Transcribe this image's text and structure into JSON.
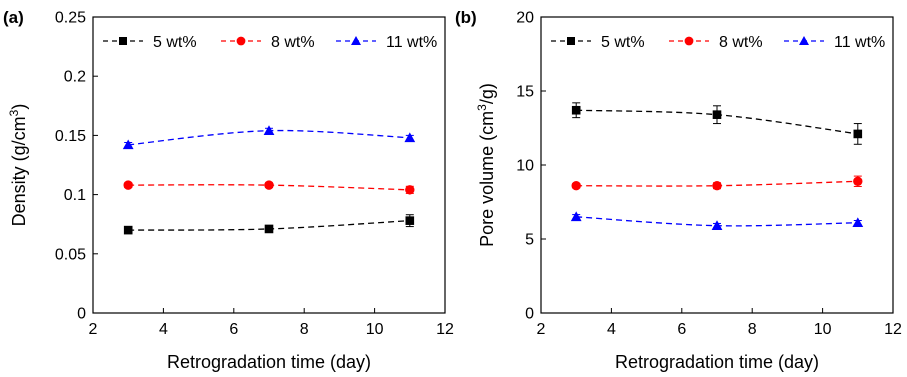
{
  "chart_data": [
    {
      "panel_label": "(a)",
      "type": "line",
      "xlabel": "Retrogradation time (day)",
      "ylabel_main": "Density (g/cm",
      "ylabel_sup": "3",
      "ylabel_tail": ")",
      "xlim": [
        2,
        12
      ],
      "ylim": [
        0,
        0.25
      ],
      "xticks": [
        2,
        4,
        6,
        8,
        10,
        12
      ],
      "yticks": [
        0,
        0.05,
        0.1,
        0.15,
        0.2,
        0.25
      ],
      "ytick_labels": [
        "0",
        "0.05",
        "0.1",
        "0.15",
        "0.2",
        "0.25"
      ],
      "legend_position": "top",
      "grid": false,
      "series": [
        {
          "name": "5 wt%",
          "color": "#000000",
          "marker": "square",
          "x": [
            3,
            7,
            11
          ],
          "y": [
            0.07,
            0.071,
            0.078
          ],
          "err": [
            0.002,
            0.002,
            0.005
          ]
        },
        {
          "name": "8 wt%",
          "color": "#ff0000",
          "marker": "circle",
          "x": [
            3,
            7,
            11
          ],
          "y": [
            0.108,
            0.108,
            0.104
          ],
          "err": [
            0.002,
            0.002,
            0.003
          ]
        },
        {
          "name": "11 wt%",
          "color": "#0000ff",
          "marker": "triangle",
          "x": [
            3,
            7,
            11
          ],
          "y": [
            0.142,
            0.154,
            0.148
          ],
          "err": [
            0.002,
            0.002,
            0.002
          ]
        }
      ]
    },
    {
      "panel_label": "(b)",
      "type": "line",
      "xlabel": "Retrogradation time (day)",
      "ylabel_main": "Pore volume (cm",
      "ylabel_sup": "3",
      "ylabel_tail": "/g)",
      "xlim": [
        2,
        12
      ],
      "ylim": [
        0,
        20
      ],
      "xticks": [
        2,
        4,
        6,
        8,
        10,
        12
      ],
      "yticks": [
        0,
        5,
        10,
        15,
        20
      ],
      "ytick_labels": [
        "0",
        "5",
        "10",
        "15",
        "20"
      ],
      "legend_position": "top",
      "grid": false,
      "series": [
        {
          "name": "5 wt%",
          "color": "#000000",
          "marker": "square",
          "x": [
            3,
            7,
            11
          ],
          "y": [
            13.7,
            13.4,
            12.1
          ],
          "err": [
            0.5,
            0.6,
            0.7
          ]
        },
        {
          "name": "8 wt%",
          "color": "#ff0000",
          "marker": "circle",
          "x": [
            3,
            7,
            11
          ],
          "y": [
            8.6,
            8.6,
            8.9
          ],
          "err": [
            0.15,
            0.2,
            0.35
          ]
        },
        {
          "name": "11 wt%",
          "color": "#0000ff",
          "marker": "triangle",
          "x": [
            3,
            7,
            11
          ],
          "y": [
            6.5,
            5.9,
            6.1
          ],
          "err": [
            0.15,
            0.15,
            0.15
          ]
        }
      ]
    }
  ]
}
